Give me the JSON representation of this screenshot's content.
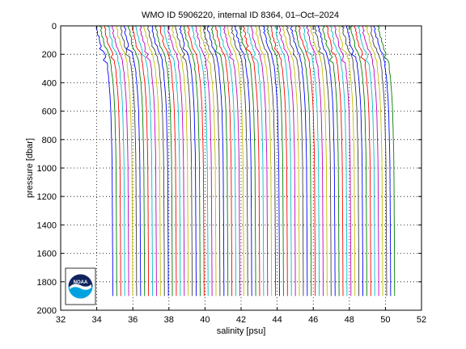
{
  "chart_data": {
    "type": "line",
    "title": "WMO ID 5906220, internal ID 8364, 01–Oct–2024",
    "xlabel": "salinity [psu]",
    "ylabel": "pressure [dbar]",
    "xlim": [
      32,
      52
    ],
    "ylim": [
      0,
      2000
    ],
    "y_reversed": true,
    "grid": true,
    "x_ticks": [
      "32",
      "34",
      "36",
      "38",
      "40",
      "42",
      "44",
      "46",
      "48",
      "50",
      "52"
    ],
    "y_ticks": [
      "0",
      "200",
      "400",
      "600",
      "800",
      "1000",
      "1200",
      "1400",
      "1600",
      "1800",
      "2000"
    ],
    "profile_count": 72,
    "profile_offset_psu": 0.22,
    "profile_bottom_pressure": 1900,
    "base_profile": {
      "pressure": [
        0,
        50,
        100,
        150,
        200,
        250,
        300,
        400,
        500,
        600,
        700,
        800,
        900,
        1000,
        1200,
        1400,
        1600,
        1900
      ],
      "salinity": [
        34.0,
        34.05,
        34.15,
        34.25,
        34.45,
        34.55,
        34.6,
        34.68,
        34.74,
        34.78,
        34.8,
        34.82,
        34.84,
        34.85,
        34.86,
        34.87,
        34.88,
        34.89
      ]
    },
    "line_colors": [
      "#0000ff",
      "#008000",
      "#ff0000",
      "#00bfbf",
      "#bf00bf",
      "#bfbf00",
      "#404040"
    ]
  },
  "logo": {
    "text": "NOAA",
    "colors": {
      "top": "#10245e",
      "bottom": "#00a3e0",
      "ring": "#ffffff"
    }
  }
}
